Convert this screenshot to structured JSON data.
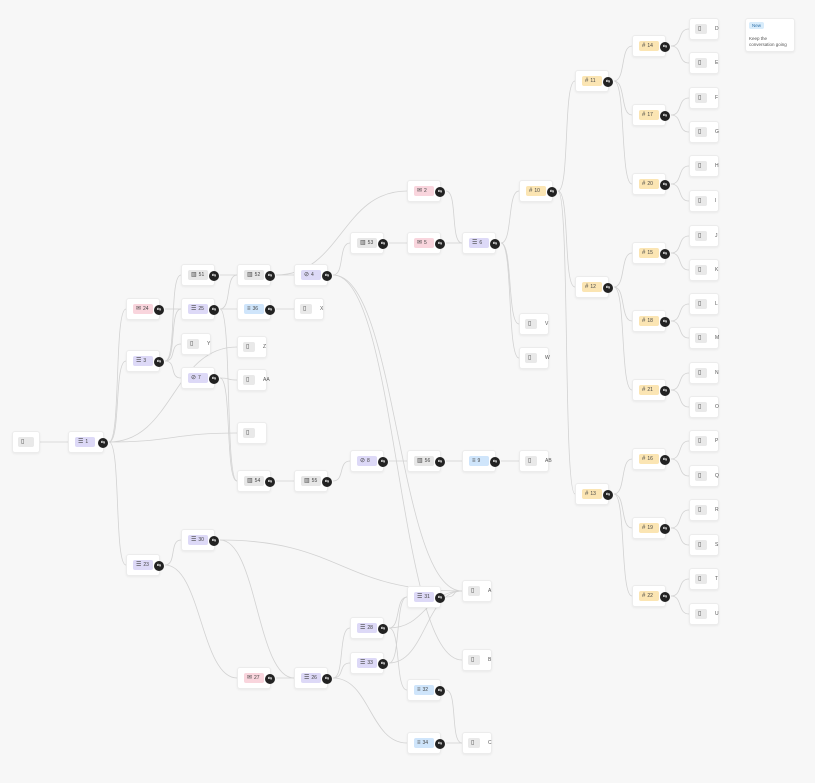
{
  "root": {
    "id": "root",
    "label": ""
  },
  "nodes": [
    {
      "id": "n1",
      "label": "1",
      "kind": "list"
    },
    {
      "id": "n2",
      "label": "2",
      "kind": "mail"
    },
    {
      "id": "n3",
      "label": "3",
      "kind": "list"
    },
    {
      "id": "n4",
      "label": "4",
      "kind": "ban"
    },
    {
      "id": "n5",
      "label": "5",
      "kind": "mail"
    },
    {
      "id": "n6",
      "label": "6",
      "kind": "list"
    },
    {
      "id": "n7",
      "label": "7",
      "kind": "ban"
    },
    {
      "id": "n8",
      "label": "8",
      "kind": "ban"
    },
    {
      "id": "n9",
      "label": "9",
      "kind": "text"
    },
    {
      "id": "n10",
      "label": "10",
      "kind": "hash"
    },
    {
      "id": "n11",
      "label": "11",
      "kind": "hash"
    },
    {
      "id": "n12",
      "label": "12",
      "kind": "hash"
    },
    {
      "id": "n13",
      "label": "13",
      "kind": "hash"
    },
    {
      "id": "n14",
      "label": "14",
      "kind": "hash"
    },
    {
      "id": "n15",
      "label": "15",
      "kind": "hash"
    },
    {
      "id": "n16",
      "label": "16",
      "kind": "hash"
    },
    {
      "id": "n17",
      "label": "17",
      "kind": "hash"
    },
    {
      "id": "n18",
      "label": "18",
      "kind": "hash"
    },
    {
      "id": "n19",
      "label": "19",
      "kind": "hash"
    },
    {
      "id": "n20",
      "label": "20",
      "kind": "hash"
    },
    {
      "id": "n21",
      "label": "21",
      "kind": "hash"
    },
    {
      "id": "n22",
      "label": "22",
      "kind": "hash"
    },
    {
      "id": "n23",
      "label": "23",
      "kind": "list"
    },
    {
      "id": "n24",
      "label": "24",
      "kind": "mail"
    },
    {
      "id": "n25",
      "label": "25",
      "kind": "list"
    },
    {
      "id": "n26",
      "label": "26",
      "kind": "list"
    },
    {
      "id": "n27",
      "label": "27",
      "kind": "mail"
    },
    {
      "id": "n28",
      "label": "28",
      "kind": "list"
    },
    {
      "id": "n30",
      "label": "30",
      "kind": "list"
    },
    {
      "id": "n31",
      "label": "31",
      "kind": "list"
    },
    {
      "id": "n32",
      "label": "32",
      "kind": "text"
    },
    {
      "id": "n33",
      "label": "33",
      "kind": "list"
    },
    {
      "id": "n34",
      "label": "34",
      "kind": "text"
    },
    {
      "id": "n36",
      "label": "36",
      "kind": "text"
    },
    {
      "id": "n51",
      "label": "51",
      "kind": "grid"
    },
    {
      "id": "n52",
      "label": "52",
      "kind": "grid"
    },
    {
      "id": "n53",
      "label": "53",
      "kind": "grid"
    },
    {
      "id": "n54",
      "label": "54",
      "kind": "grid"
    },
    {
      "id": "n55",
      "label": "55",
      "kind": "grid"
    },
    {
      "id": "n56",
      "label": "56",
      "kind": "grid"
    }
  ],
  "leaves": [
    {
      "id": "lA",
      "label": "A"
    },
    {
      "id": "lB",
      "label": "B"
    },
    {
      "id": "lC",
      "label": "C"
    },
    {
      "id": "lD",
      "label": "D"
    },
    {
      "id": "lE",
      "label": "E"
    },
    {
      "id": "lF",
      "label": "F"
    },
    {
      "id": "lG",
      "label": "G"
    },
    {
      "id": "lH",
      "label": "H"
    },
    {
      "id": "lI",
      "label": "I"
    },
    {
      "id": "lJ",
      "label": "J"
    },
    {
      "id": "lK",
      "label": "K"
    },
    {
      "id": "lL",
      "label": "L"
    },
    {
      "id": "lM",
      "label": "M"
    },
    {
      "id": "lN",
      "label": "N"
    },
    {
      "id": "lO",
      "label": "O"
    },
    {
      "id": "lP",
      "label": "P"
    },
    {
      "id": "lQ",
      "label": "Q"
    },
    {
      "id": "lR",
      "label": "R"
    },
    {
      "id": "lS",
      "label": "S"
    },
    {
      "id": "lT",
      "label": "T"
    },
    {
      "id": "lU",
      "label": "U"
    },
    {
      "id": "lV",
      "label": "V"
    },
    {
      "id": "lW",
      "label": "W"
    },
    {
      "id": "lX",
      "label": "X"
    },
    {
      "id": "lY",
      "label": "Y"
    },
    {
      "id": "lZ",
      "label": "Z"
    },
    {
      "id": "lAA",
      "label": "AA"
    },
    {
      "id": "lAB",
      "label": "AB"
    },
    {
      "id": "lBlank",
      "label": ""
    }
  ],
  "edges": [
    [
      "root",
      "n1"
    ],
    [
      "n1",
      "n24"
    ],
    [
      "n1",
      "n3"
    ],
    [
      "n1",
      "n23"
    ],
    [
      "n1",
      "lBlank"
    ],
    [
      "n1",
      "lZ"
    ],
    [
      "n24",
      "n25"
    ],
    [
      "n3",
      "n51"
    ],
    [
      "n3",
      "n25"
    ],
    [
      "n3",
      "lY"
    ],
    [
      "n3",
      "n7"
    ],
    [
      "n25",
      "n52"
    ],
    [
      "n25",
      "n36"
    ],
    [
      "n25",
      "n54"
    ],
    [
      "n51",
      "n52"
    ],
    [
      "n52",
      "n4"
    ],
    [
      "n52",
      "n2"
    ],
    [
      "n36",
      "lX"
    ],
    [
      "n7",
      "lAA"
    ],
    [
      "n7",
      "n54"
    ],
    [
      "n54",
      "n55"
    ],
    [
      "n55",
      "n8"
    ],
    [
      "n8",
      "n56"
    ],
    [
      "n56",
      "n9"
    ],
    [
      "n9",
      "lAB"
    ],
    [
      "n4",
      "n53"
    ],
    [
      "n4",
      "lA"
    ],
    [
      "n4",
      "lB"
    ],
    [
      "n53",
      "n5"
    ],
    [
      "n2",
      "n6"
    ],
    [
      "n5",
      "n6"
    ],
    [
      "n6",
      "n10"
    ],
    [
      "n6",
      "lV"
    ],
    [
      "n6",
      "lW"
    ],
    [
      "n10",
      "n11"
    ],
    [
      "n10",
      "n12"
    ],
    [
      "n10",
      "n13"
    ],
    [
      "n11",
      "n14"
    ],
    [
      "n11",
      "n17"
    ],
    [
      "n11",
      "n20"
    ],
    [
      "n12",
      "n15"
    ],
    [
      "n12",
      "n18"
    ],
    [
      "n12",
      "n21"
    ],
    [
      "n13",
      "n16"
    ],
    [
      "n13",
      "n19"
    ],
    [
      "n13",
      "n22"
    ],
    [
      "n14",
      "lD"
    ],
    [
      "n14",
      "lE"
    ],
    [
      "n17",
      "lF"
    ],
    [
      "n17",
      "lG"
    ],
    [
      "n20",
      "lH"
    ],
    [
      "n20",
      "lI"
    ],
    [
      "n15",
      "lJ"
    ],
    [
      "n15",
      "lK"
    ],
    [
      "n18",
      "lL"
    ],
    [
      "n18",
      "lM"
    ],
    [
      "n21",
      "lN"
    ],
    [
      "n21",
      "lO"
    ],
    [
      "n16",
      "lP"
    ],
    [
      "n16",
      "lQ"
    ],
    [
      "n19",
      "lR"
    ],
    [
      "n19",
      "lS"
    ],
    [
      "n22",
      "lT"
    ],
    [
      "n22",
      "lU"
    ],
    [
      "n23",
      "n30"
    ],
    [
      "n23",
      "n27"
    ],
    [
      "n30",
      "n26"
    ],
    [
      "n30",
      "lA"
    ],
    [
      "n27",
      "n26"
    ],
    [
      "n26",
      "n28"
    ],
    [
      "n26",
      "n33"
    ],
    [
      "n26",
      "n34"
    ],
    [
      "n28",
      "n31"
    ],
    [
      "n28",
      "lA"
    ],
    [
      "n28",
      "n32"
    ],
    [
      "n33",
      "n31"
    ],
    [
      "n33",
      "lA"
    ],
    [
      "n31",
      "lA"
    ],
    [
      "n32",
      "lC"
    ],
    [
      "n34",
      "lC"
    ]
  ],
  "note": {
    "badge": "New",
    "text": "Keep the conversation going"
  },
  "icons": {
    "list": "list-icon",
    "mail": "mail-icon",
    "hash": "hash-icon",
    "text": "text-lines-icon",
    "grid": "columns-icon",
    "ban": "ban-icon",
    "leaf": "leaf-node-icon",
    "branch": "branch-icon"
  },
  "colors": {
    "list": "#ddd9f7",
    "mail": "#f9d5dd",
    "hash": "#fbe5b3",
    "text": "#cfe5fb",
    "grid": "#e7e7e7",
    "leaf": "#e9e9e9",
    "edge": "#d2d2d2"
  }
}
